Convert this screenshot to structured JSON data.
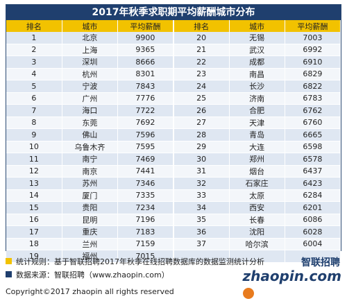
{
  "title": "2017年秋季求职期平均薪酬城市分布",
  "headers": [
    "排名",
    "城市",
    "平均薪酬",
    "排名",
    "城市",
    "平均薪酬"
  ],
  "left_rows": [
    {
      "rank": "1",
      "city": "北京",
      "salary": "9900"
    },
    {
      "rank": "2",
      "city": "上海",
      "salary": "9365"
    },
    {
      "rank": "3",
      "city": "深圳",
      "salary": "8666"
    },
    {
      "rank": "4",
      "city": "杭州",
      "salary": "8301"
    },
    {
      "rank": "5",
      "city": "宁波",
      "salary": "7843"
    },
    {
      "rank": "6",
      "city": "广州",
      "salary": "7776"
    },
    {
      "rank": "7",
      "city": "海口",
      "salary": "7722"
    },
    {
      "rank": "8",
      "city": "东莞",
      "salary": "7692"
    },
    {
      "rank": "9",
      "city": "佛山",
      "salary": "7596"
    },
    {
      "rank": "10",
      "city": "乌鲁木齐",
      "salary": "7595"
    },
    {
      "rank": "11",
      "city": "南宁",
      "salary": "7469"
    },
    {
      "rank": "12",
      "city": "南京",
      "salary": "7441"
    },
    {
      "rank": "13",
      "city": "苏州",
      "salary": "7346"
    },
    {
      "rank": "14",
      "city": "厦门",
      "salary": "7335"
    },
    {
      "rank": "15",
      "city": "贵阳",
      "salary": "7234"
    },
    {
      "rank": "16",
      "city": "昆明",
      "salary": "7196"
    },
    {
      "rank": "17",
      "city": "重庆",
      "salary": "7183"
    },
    {
      "rank": "18",
      "city": "兰州",
      "salary": "7159"
    },
    {
      "rank": "19",
      "city": "福州",
      "salary": "7015"
    }
  ],
  "right_rows": [
    {
      "rank": "20",
      "city": "无锡",
      "salary": "7003"
    },
    {
      "rank": "21",
      "city": "武汉",
      "salary": "6992"
    },
    {
      "rank": "22",
      "city": "成都",
      "salary": "6910"
    },
    {
      "rank": "23",
      "city": "南昌",
      "salary": "6829"
    },
    {
      "rank": "24",
      "city": "长沙",
      "salary": "6822"
    },
    {
      "rank": "25",
      "city": "济南",
      "salary": "6783"
    },
    {
      "rank": "26",
      "city": "合肥",
      "salary": "6762"
    },
    {
      "rank": "27",
      "city": "天津",
      "salary": "6760"
    },
    {
      "rank": "28",
      "city": "青岛",
      "salary": "6665"
    },
    {
      "rank": "29",
      "city": "大连",
      "salary": "6598"
    },
    {
      "rank": "30",
      "city": "郑州",
      "salary": "6578"
    },
    {
      "rank": "31",
      "city": "烟台",
      "salary": "6437"
    },
    {
      "rank": "32",
      "city": "石家庄",
      "salary": "6423"
    },
    {
      "rank": "33",
      "city": "太原",
      "salary": "6284"
    },
    {
      "rank": "34",
      "city": "西安",
      "salary": "6201"
    },
    {
      "rank": "35",
      "city": "长春",
      "salary": "6086"
    },
    {
      "rank": "36",
      "city": "沈阳",
      "salary": "6028"
    },
    {
      "rank": "37",
      "city": "哈尔滨",
      "salary": "6004"
    }
  ],
  "notes": {
    "rule": "统计规则：基于智联招聘2017年秋季在线招聘数据库的数据监测统计分析",
    "source": "数据来源：智联招聘（www.zhaopin.com）"
  },
  "copyright": "Copyright©2017 zhaopin all rights reserved",
  "logo": {
    "cn": "智联招聘",
    "en": "zhaopin.com"
  },
  "colors": {
    "header_bg": "#1f3f6e",
    "column_header_bg": "#f2c200",
    "row_odd": "#dfe7f2",
    "row_even": "#f3f6fa",
    "logo_ball": "#e87b1e"
  }
}
